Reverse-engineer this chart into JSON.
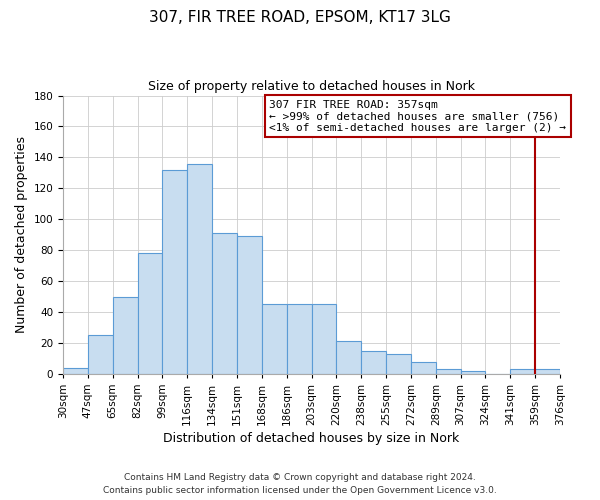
{
  "title": "307, FIR TREE ROAD, EPSOM, KT17 3LG",
  "subtitle": "Size of property relative to detached houses in Nork",
  "xlabel": "Distribution of detached houses by size in Nork",
  "ylabel": "Number of detached properties",
  "footer_line1": "Contains HM Land Registry data © Crown copyright and database right 2024.",
  "footer_line2": "Contains public sector information licensed under the Open Government Licence v3.0.",
  "bar_labels": [
    "30sqm",
    "47sqm",
    "65sqm",
    "82sqm",
    "99sqm",
    "116sqm",
    "134sqm",
    "151sqm",
    "168sqm",
    "186sqm",
    "203sqm",
    "220sqm",
    "238sqm",
    "255sqm",
    "272sqm",
    "289sqm",
    "307sqm",
    "324sqm",
    "341sqm",
    "359sqm",
    "376sqm"
  ],
  "bar_values": [
    4,
    25,
    50,
    78,
    132,
    136,
    91,
    89,
    45,
    45,
    45,
    21,
    15,
    13,
    8,
    3,
    2,
    0,
    3,
    3
  ],
  "bar_color": "#c8ddf0",
  "bar_edge_color": "#5b9bd5",
  "ylim": [
    0,
    180
  ],
  "yticks": [
    0,
    20,
    40,
    60,
    80,
    100,
    120,
    140,
    160,
    180
  ],
  "property_label": "307 FIR TREE ROAD: 357sqm",
  "legend_line1": "← >99% of detached houses are smaller (756)",
  "legend_line2": "<1% of semi-detached houses are larger (2) →",
  "vline_color": "#aa0000",
  "legend_box_color": "#ffffff",
  "legend_border_color": "#aa0000",
  "background_color": "#ffffff",
  "grid_color": "#cccccc",
  "title_fontsize": 11,
  "subtitle_fontsize": 9,
  "axis_label_fontsize": 9,
  "tick_fontsize": 7.5
}
